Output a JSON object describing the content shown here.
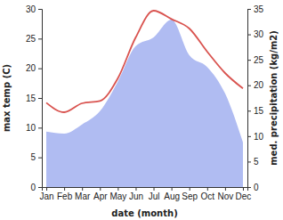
{
  "chart_data": {
    "type": "line",
    "x_label": "date (month)",
    "y_label": "max temp (C)",
    "y2_label": "med. precipitation (kg/m2)",
    "categories": [
      "Jan",
      "Feb",
      "Mar",
      "Apr",
      "May",
      "Jun",
      "Jul",
      "Aug",
      "Sep",
      "Oct",
      "Nov",
      "Dec"
    ],
    "series": [
      {
        "type": "area",
        "axis": "y2",
        "color": "#b0bcf2",
        "values": [
          10.9,
          10.5,
          12.3,
          14.9,
          20.7,
          27.7,
          29.4,
          32.9,
          25.9,
          23.6,
          18.4,
          8.8
        ]
      },
      {
        "type": "line",
        "color": "#d9534f",
        "values": [
          14.2,
          12.6,
          14.1,
          14.5,
          18.3,
          25.2,
          29.7,
          28.3,
          26.7,
          22.8,
          19.2,
          16.6
        ]
      }
    ],
    "ylim": [
      0,
      30
    ],
    "yticks": [
      0,
      5,
      10,
      15,
      20,
      25,
      30
    ],
    "y2lim": [
      0,
      35
    ],
    "y2ticks": [
      0,
      5,
      10,
      15,
      20,
      25,
      30,
      35
    ]
  }
}
